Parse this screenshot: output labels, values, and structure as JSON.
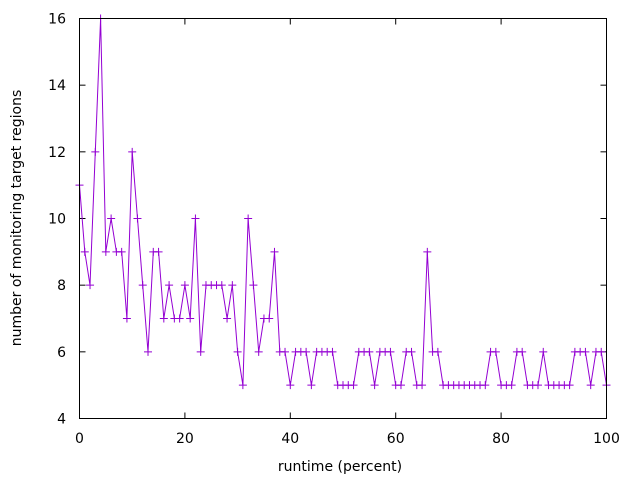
{
  "chart_data": {
    "type": "line",
    "title": "",
    "xlabel": "runtime (percent)",
    "ylabel": "number of monitoring target regions",
    "xlim": [
      0,
      100
    ],
    "ylim": [
      4,
      16
    ],
    "xticks": [
      "0",
      "20",
      "40",
      "60",
      "80",
      "100"
    ],
    "yticks": [
      "4",
      "6",
      "8",
      "10",
      "12",
      "14",
      "16"
    ],
    "grid": false,
    "markers": "plus",
    "series_color": "#9400d3",
    "x": [
      0,
      1,
      2,
      3,
      4,
      5,
      6,
      7,
      8,
      9,
      10,
      11,
      12,
      13,
      14,
      15,
      16,
      17,
      18,
      19,
      20,
      21,
      22,
      23,
      24,
      25,
      26,
      27,
      28,
      29,
      30,
      31,
      32,
      33,
      34,
      35,
      36,
      37,
      38,
      39,
      40,
      41,
      42,
      43,
      44,
      45,
      46,
      47,
      48,
      49,
      50,
      51,
      52,
      53,
      54,
      55,
      56,
      57,
      58,
      59,
      60,
      61,
      62,
      63,
      64,
      65,
      66,
      67,
      68,
      69,
      70,
      71,
      72,
      73,
      74,
      75,
      76,
      77,
      78,
      79,
      80,
      81,
      82,
      83,
      84,
      85,
      86,
      87,
      88,
      89,
      90,
      91,
      92,
      93,
      94,
      95,
      96,
      97,
      98,
      99,
      100
    ],
    "values": [
      11,
      9,
      8,
      12,
      16,
      9,
      10,
      9,
      9,
      7,
      12,
      10,
      8,
      6,
      9,
      9,
      7,
      8,
      7,
      7,
      8,
      7,
      10,
      6,
      8,
      8,
      8,
      8,
      7,
      8,
      6,
      5,
      10,
      8,
      6,
      7,
      7,
      9,
      6,
      6,
      5,
      6,
      6,
      6,
      5,
      6,
      6,
      6,
      6,
      5,
      5,
      5,
      5,
      6,
      6,
      6,
      5,
      6,
      6,
      6,
      5,
      5,
      6,
      6,
      5,
      5,
      9,
      6,
      6,
      5,
      5,
      5,
      5,
      5,
      5,
      5,
      5,
      5,
      6,
      6,
      5,
      5,
      5,
      6,
      6,
      5,
      5,
      5,
      6,
      5,
      5,
      5,
      5,
      5,
      6,
      6,
      6,
      5,
      6,
      6,
      5
    ]
  }
}
